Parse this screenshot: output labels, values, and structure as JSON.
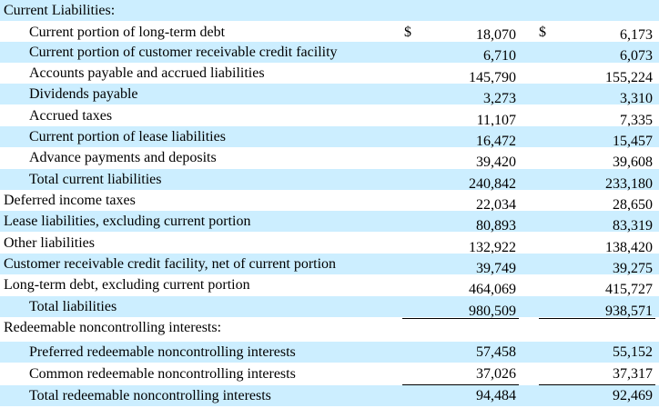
{
  "section_current": "Current Liabilities:",
  "currency_symbol": "$",
  "rows": [
    {
      "label": "Current portion of long-term debt",
      "c1": "18,070",
      "c2": "6,173"
    },
    {
      "label": "Current portion of customer receivable credit facility",
      "c1": "6,710",
      "c2": "6,073"
    },
    {
      "label": "Accounts payable and accrued liabilities",
      "c1": "145,790",
      "c2": "155,224"
    },
    {
      "label": "Dividends payable",
      "c1": "3,273",
      "c2": "3,310"
    },
    {
      "label": "Accrued taxes",
      "c1": "11,107",
      "c2": "7,335"
    },
    {
      "label": "Current portion of lease liabilities",
      "c1": "16,472",
      "c2": "15,457"
    },
    {
      "label": "Advance payments and deposits",
      "c1": "39,420",
      "c2": "39,608"
    },
    {
      "label": "Total current liabilities",
      "c1": "240,842",
      "c2": "233,180"
    },
    {
      "label": "Deferred income taxes",
      "c1": "22,034",
      "c2": "28,650"
    },
    {
      "label": "Lease liabilities, excluding current portion",
      "c1": "80,893",
      "c2": "83,319"
    },
    {
      "label": "Other liabilities",
      "c1": "132,922",
      "c2": "138,420"
    },
    {
      "label": "Customer receivable credit facility, net of current portion",
      "c1": "39,749",
      "c2": "39,275"
    },
    {
      "label": "Long-term debt, excluding current portion",
      "c1": "464,069",
      "c2": "415,727"
    },
    {
      "label": "Total liabilities",
      "c1": "980,509",
      "c2": "938,571"
    }
  ],
  "section_redeemable": "Redeemable noncontrolling interests:",
  "redeemable_rows": [
    {
      "label": "Preferred redeemable noncontrolling interests",
      "c1": "57,458",
      "c2": "55,152"
    },
    {
      "label": "Common redeemable noncontrolling interests",
      "c1": "37,026",
      "c2": "37,317"
    },
    {
      "label": "Total redeemable noncontrolling interests",
      "c1": "94,484",
      "c2": "92,469"
    }
  ]
}
